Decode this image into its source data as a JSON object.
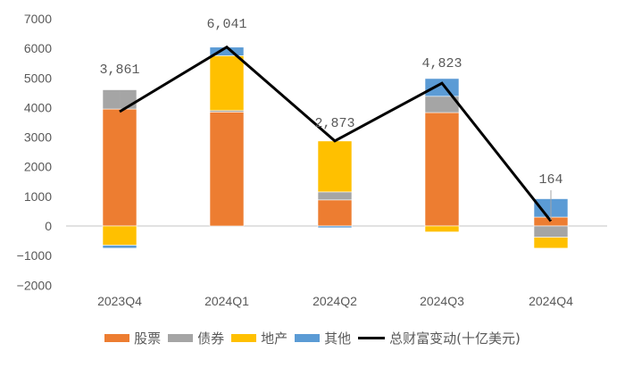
{
  "chart_data": {
    "type": "bar",
    "subtype": "stacked-bar-with-line",
    "title": "",
    "xlabel": "",
    "ylabel": "",
    "ylim": [
      -2000,
      7000
    ],
    "yticks": [
      7000,
      6000,
      5000,
      4000,
      3000,
      2000,
      1000,
      0,
      -1000,
      -2000
    ],
    "ytick_labels": [
      "7000",
      "6000",
      "5000",
      "4000",
      "3000",
      "2000",
      "1000",
      "0",
      "-1000",
      "-2000"
    ],
    "grid": false,
    "legend_position": "bottom",
    "categories": [
      "2023Q4",
      "2024Q1",
      "2024Q2",
      "2024Q3",
      "2024Q4"
    ],
    "series": [
      {
        "name": "股票",
        "type": "bar",
        "color": "#ED7D31",
        "values": [
          3950,
          3850,
          880,
          3830,
          300
        ]
      },
      {
        "name": "债券",
        "type": "bar",
        "color": "#A5A5A5",
        "values": [
          650,
          50,
          270,
          550,
          -380
        ]
      },
      {
        "name": "地产",
        "type": "bar",
        "color": "#FFC000",
        "values": [
          -650,
          1850,
          1720,
          -200,
          -370
        ]
      },
      {
        "name": "其他",
        "type": "bar",
        "color": "#5B9BD5",
        "values": [
          -100,
          290,
          -60,
          600,
          620
        ]
      },
      {
        "name": "总财富变动(十亿美元)",
        "type": "line",
        "color": "#000000",
        "values": [
          3861,
          6041,
          2873,
          4823,
          164
        ]
      }
    ],
    "data_labels": [
      "3,861",
      "6,041",
      "2,873",
      "4,823",
      "164"
    ]
  },
  "legend": {
    "items": [
      {
        "label": "股票",
        "color": "#ED7D31",
        "kind": "swatch"
      },
      {
        "label": "债券",
        "color": "#A5A5A5",
        "kind": "swatch"
      },
      {
        "label": "地产",
        "color": "#FFC000",
        "kind": "swatch"
      },
      {
        "label": "其他",
        "color": "#5B9BD5",
        "kind": "swatch"
      },
      {
        "label": "总财富变动(十亿美元)",
        "color": "#000000",
        "kind": "line"
      }
    ]
  }
}
